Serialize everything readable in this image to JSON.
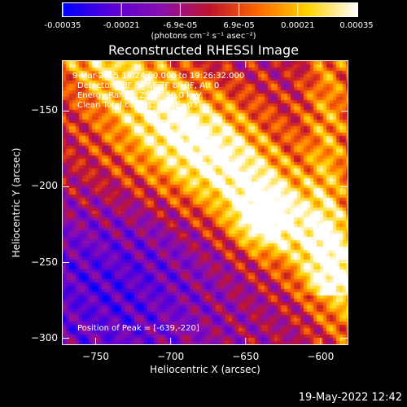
{
  "colorbar": {
    "ticks": [
      "-0.00035",
      "-0.00021",
      "-6.9e-05",
      "6.9e-05",
      "0.00021",
      "0.00035"
    ],
    "units": "(photons cm⁻² s⁻¹ asec⁻²)",
    "range": [
      -0.00035,
      0.00035
    ],
    "colors": [
      "#0000ff",
      "#5a00d8",
      "#8a0fb0",
      "#c0142e",
      "#ff6a00",
      "#ffd400",
      "#ffffff"
    ]
  },
  "chart_data": {
    "type": "heatmap",
    "title": "Reconstructed RHESSI Image",
    "xlabel": "Heliocentric X (arcsec)",
    "ylabel": "Heliocentric Y (arcsec)",
    "xlim": [
      -772,
      -582
    ],
    "ylim": [
      -304,
      -117
    ],
    "xticks": [
      -750,
      -700,
      -650,
      -600
    ],
    "yticks": [
      -150,
      -200,
      -250,
      -300
    ],
    "xtick_labels": [
      "−750",
      "−700",
      "−650",
      "−600"
    ],
    "ytick_labels": [
      "−150",
      "−200",
      "−250",
      "−300"
    ],
    "annotations": [
      "9-Mar-2015 19:24:00.000 to 19:26:32.000",
      "Detectors: 3F 5F 6F 7F 8F 9F, Att 0",
      "Energy Range: 25.0 - 50.0 keV",
      "Clean    Total counts: 3.30E+03"
    ],
    "peak_label": "Position of Peak = [-639,-220]",
    "peak": [
      -639,
      -220
    ]
  },
  "timestamp": "19-May-2022 12:42"
}
